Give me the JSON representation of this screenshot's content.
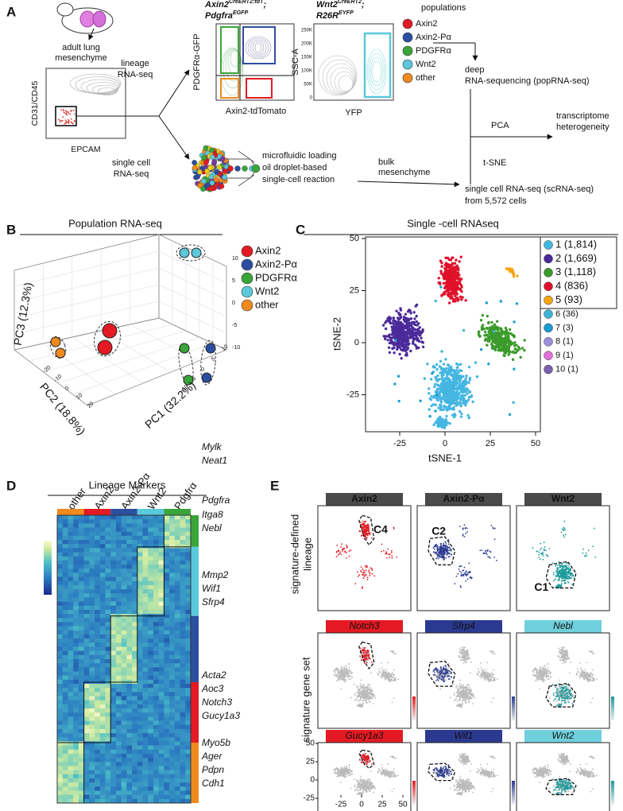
{
  "panel_a": {
    "letter": "A",
    "mouse_label": [
      "adult lung",
      "mesenchyme"
    ],
    "facs": {
      "y_label": "CD31/CD45",
      "x_label": "EPCAM"
    },
    "lineage_label": [
      "lineage",
      "RNA-seq"
    ],
    "single_cell_label": [
      "single cell",
      "RNA-seq"
    ],
    "plot1": {
      "title_lines": [
        [
          "Axin2",
          "CreERT2:tdT",
          ";"
        ],
        [
          "Pdgfra",
          "EGFP"
        ]
      ],
      "y_label": "PDGFRα-GFP",
      "x_label": "Axin2-tdTomato"
    },
    "plot2": {
      "title_lines": [
        [
          "Wnt2",
          "CreERT2",
          ";"
        ],
        [
          "R26R",
          "EYFP"
        ]
      ],
      "y_label": "SSC-A",
      "x_label": "YFP",
      "yticks": [
        "250K",
        "200K",
        "150K",
        "100K",
        "50K",
        "0"
      ]
    },
    "populations": {
      "title": "populations",
      "items": [
        {
          "name": "Axin2",
          "color": "#e31a23"
        },
        {
          "name": "Axin2-Pα",
          "color": "#2b4ea0"
        },
        {
          "name": "PDGFRα",
          "color": "#3aa53a"
        },
        {
          "name": "Wnt2",
          "color": "#5bc8dc"
        },
        {
          "name": "other",
          "color": "#f08a1d"
        }
      ]
    },
    "deep_seq": [
      "deep",
      "RNA-sequencing (popRNA-seq)"
    ],
    "pca": "PCA",
    "tsne": "t-SNE",
    "heterogeneity": [
      "transcriptome",
      "heterogeneity"
    ],
    "microfluidic": [
      "microfluidic loading",
      "oil droplet-based",
      "single-cell reaction"
    ],
    "bulk": [
      "bulk",
      "mesenchyme"
    ],
    "scrnaseq": [
      "single cell RNA-seq (scRNA-seq)",
      "from 5,572 cells"
    ]
  },
  "panel_b": {
    "letter": "B",
    "title": "Population RNA-seq",
    "legend": [
      "Axin2",
      "Axin2-Pα",
      "PDGFRα",
      "Wnt2",
      "other"
    ],
    "pc1_label": "PC1 (32.2%)",
    "pc2_label": "PC2 (18.8%)",
    "pc3_label": "PC3 (12.3%)",
    "pc3_ticks": [
      "10",
      "5",
      "0",
      "-5",
      "-10"
    ],
    "pc1_ticks": [
      "-10",
      "-5",
      "0",
      "5",
      "10"
    ],
    "pc2_ticks": [
      "-20",
      "-10",
      "0",
      "10",
      "20"
    ]
  },
  "panel_c": {
    "letter": "C",
    "title": "Single -cell RNAseq",
    "y_label": "tSNE-2",
    "x_label": "tSNE-1",
    "yticks": [
      "50",
      "25",
      "0",
      "-25"
    ],
    "xticks": [
      "-25",
      "0",
      "25",
      "50"
    ],
    "clusters": [
      {
        "name": "1 (1,814)",
        "color": "#45b6e2"
      },
      {
        "name": "2 (1,669)",
        "color": "#4b2a9a"
      },
      {
        "name": "3 (1,118)",
        "color": "#3a9a2a"
      },
      {
        "name": "4 (836)",
        "color": "#e0102a"
      },
      {
        "name": "5 (93)",
        "color": "#f5a510"
      },
      {
        "name": "6 (36)",
        "color": "#3fb4d8"
      },
      {
        "name": "7 (3)",
        "color": "#1a9cd0"
      },
      {
        "name": "8 (1)",
        "color": "#9c8fe0"
      },
      {
        "name": "9 (1)",
        "color": "#e070d8"
      },
      {
        "name": "10 (1)",
        "color": "#8060b0"
      }
    ]
  },
  "panel_d": {
    "letter": "D",
    "title": "Lineage Markers",
    "columns": [
      "other",
      "Axin2",
      "Axin2-Pα",
      "Wnt2",
      "Pdgfrα"
    ],
    "genes": [
      "Mylk",
      "Neat1",
      "Pdgfra",
      "Itga8",
      "Nebl",
      "Mmp2",
      "Wif1",
      "Sfrp4",
      "Acta2",
      "Aoc3",
      "Notch3",
      "Gucy1a3",
      "Myo5b",
      "Ager",
      "Pdpn",
      "Cdh1"
    ]
  },
  "panel_e": {
    "letter": "E",
    "row1_label": [
      "signature-defined",
      "lineage"
    ],
    "row23_label": "signature gene set",
    "lineages": [
      "Axin2",
      "Axin2-Pα",
      "Wnt2"
    ],
    "lineage_clusters": [
      "C4",
      "C2",
      "C1"
    ],
    "gene_sets": [
      [
        "Notch3",
        "Sfrp4",
        "Nebl"
      ],
      [
        "Gucy1a3",
        "Wif1",
        "Wnt2"
      ]
    ],
    "yticks": [
      "50",
      "25",
      "0",
      "-25"
    ],
    "xticks": [
      "-25",
      "0",
      "25",
      "50"
    ]
  }
}
